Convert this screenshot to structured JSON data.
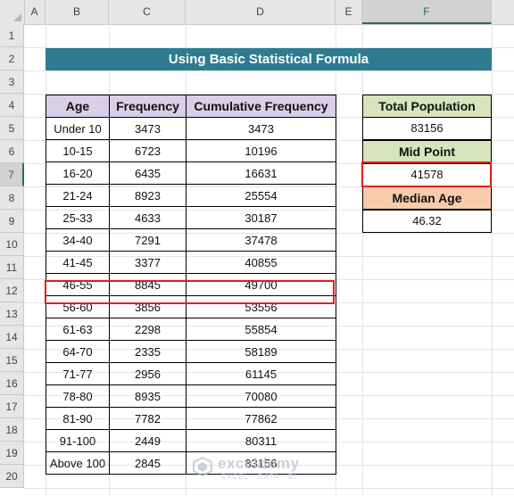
{
  "columns": [
    "A",
    "B",
    "C",
    "D",
    "E",
    "F"
  ],
  "rows": [
    "1",
    "2",
    "3",
    "4",
    "5",
    "6",
    "7",
    "8",
    "9",
    "10",
    "11",
    "12",
    "13",
    "14",
    "15",
    "16",
    "17",
    "18",
    "19",
    "20"
  ],
  "title": "Using Basic Statistical Formula",
  "table": {
    "headers": [
      "Age",
      "Frequency",
      "Cumulative Frequency"
    ],
    "rows": [
      [
        "Under 10",
        "3473",
        "3473"
      ],
      [
        "10-15",
        "6723",
        "10196"
      ],
      [
        "16-20",
        "6435",
        "16631"
      ],
      [
        "21-24",
        "8923",
        "25554"
      ],
      [
        "25-33",
        "4633",
        "30187"
      ],
      [
        "34-40",
        "7291",
        "37478"
      ],
      [
        "41-45",
        "3377",
        "40855"
      ],
      [
        "46-55",
        "8845",
        "49700"
      ],
      [
        "56-60",
        "3856",
        "53556"
      ],
      [
        "61-63",
        "2298",
        "55854"
      ],
      [
        "64-70",
        "2335",
        "58189"
      ],
      [
        "71-77",
        "2956",
        "61145"
      ],
      [
        "78-80",
        "8935",
        "70080"
      ],
      [
        "81-90",
        "7782",
        "77862"
      ],
      [
        "91-100",
        "2449",
        "80311"
      ],
      [
        "Above 100",
        "2845",
        "83156"
      ]
    ]
  },
  "summary": {
    "total_population_label": "Total Population",
    "total_population_value": "83156",
    "mid_point_label": "Mid Point",
    "mid_point_value": "41578",
    "median_age_label": "Median Age",
    "median_age_value": "46.32"
  },
  "selected_cell": {
    "column": "F",
    "row": "7"
  },
  "watermark": {
    "name": "exceldemy",
    "tagline": "EXCEL · DATA · BI"
  },
  "colors": {
    "title_band": "#2e7c90",
    "table_header": "#d9cfe8",
    "green_header": "#d8e4bc",
    "peach_header": "#f8cbad",
    "highlight": "#e0201c"
  }
}
